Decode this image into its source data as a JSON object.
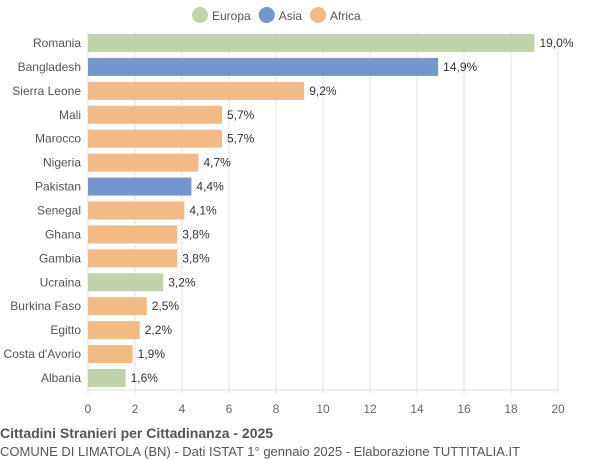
{
  "chart_data": {
    "type": "bar",
    "orientation": "horizontal",
    "title": "Cittadini Stranieri per Cittadinanza - 2025",
    "subtitle": "COMUNE DI LIMATOLA (BN) - Dati ISTAT 1° gennaio 2025 - Elaborazione TUTTITALIA.IT",
    "legend": {
      "position": "top",
      "entries": [
        {
          "name": "Europa",
          "color": "#c0d3ab"
        },
        {
          "name": "Asia",
          "color": "#7596cc"
        },
        {
          "name": "Africa",
          "color": "#f2ba87"
        }
      ]
    },
    "categories": [
      "Romania",
      "Bangladesh",
      "Sierra Leone",
      "Mali",
      "Marocco",
      "Nigeria",
      "Pakistan",
      "Senegal",
      "Ghana",
      "Gambia",
      "Ucraina",
      "Burkina Faso",
      "Egitto",
      "Costa d'Avorio",
      "Albania"
    ],
    "values": [
      19.0,
      14.9,
      9.2,
      5.7,
      5.7,
      4.7,
      4.4,
      4.1,
      3.8,
      3.8,
      3.2,
      2.5,
      2.2,
      1.9,
      1.6
    ],
    "labels": [
      "19,0%",
      "14,9%",
      "9,2%",
      "5,7%",
      "5,7%",
      "4,7%",
      "4,4%",
      "4,1%",
      "3,8%",
      "3,8%",
      "3,2%",
      "2,5%",
      "2,2%",
      "1,9%",
      "1,6%"
    ],
    "groups": [
      "Europa",
      "Asia",
      "Africa",
      "Africa",
      "Africa",
      "Africa",
      "Asia",
      "Africa",
      "Africa",
      "Africa",
      "Europa",
      "Africa",
      "Africa",
      "Africa",
      "Europa"
    ],
    "xlim": [
      0,
      20
    ],
    "xticks": [
      0,
      2,
      4,
      6,
      8,
      10,
      12,
      14,
      16,
      18,
      20
    ],
    "grid": true
  }
}
